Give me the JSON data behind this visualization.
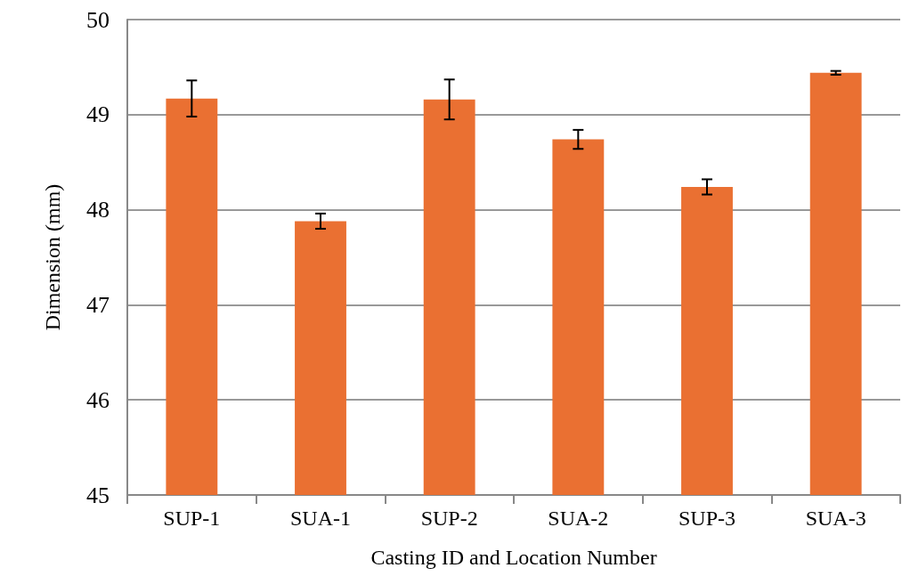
{
  "chart_data": {
    "type": "bar",
    "xlabel": "Casting ID and Location Number",
    "ylabel": "Dimension (mm)",
    "categories": [
      "SUP-1",
      "SUA-1",
      "SUP-2",
      "SUA-2",
      "SUP-3",
      "SUA-3"
    ],
    "values": [
      49.17,
      47.88,
      49.16,
      48.74,
      48.24,
      49.44
    ],
    "errors": [
      0.19,
      0.08,
      0.21,
      0.1,
      0.08,
      0.02
    ],
    "color": "#ea7032",
    "ylim": [
      45,
      50
    ],
    "yticks": [
      45,
      46,
      47,
      48,
      49,
      50
    ],
    "grid": "y"
  }
}
